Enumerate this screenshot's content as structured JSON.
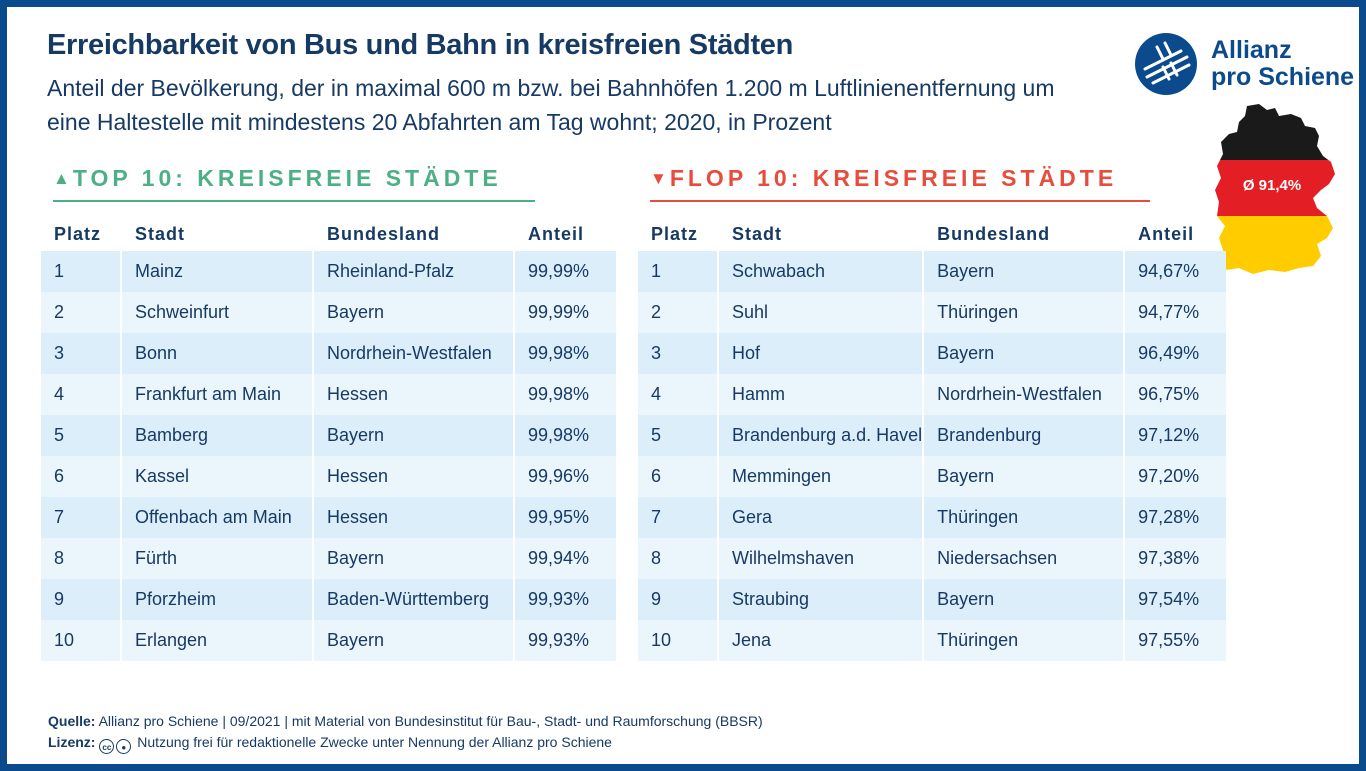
{
  "title": "Erreichbarkeit von Bus und Bahn in kreisfreien Städten",
  "subtitle": "Anteil der Bevölkerung, der in maximal 600 m bzw. bei Bahnhöfen 1.200 m Luftlinienentfernung um eine Haltestelle mit mindestens 20 Abfahrten am Tag wohnt; 2020, in Prozent",
  "logo": {
    "line1": "Allianz",
    "line2": "pro Schiene",
    "color": "#0b4a8c"
  },
  "map": {
    "average_label": "Ø 91,4%",
    "colors": [
      "#1a1a1a",
      "#e31e24",
      "#ffcc00"
    ]
  },
  "columns": {
    "rank": "Platz",
    "city": "Stadt",
    "state": "Bundesland",
    "share": "Anteil"
  },
  "top": {
    "heading": "TOP 10: KREISFREIE STÄDTE",
    "arrow": "▲",
    "color": "#4caf85",
    "rows": [
      {
        "rank": "1",
        "city": "Mainz",
        "state": "Rheinland-Pfalz",
        "share": "99,99%"
      },
      {
        "rank": "2",
        "city": "Schweinfurt",
        "state": "Bayern",
        "share": "99,99%"
      },
      {
        "rank": "3",
        "city": "Bonn",
        "state": "Nordrhein-Westfalen",
        "share": "99,98%"
      },
      {
        "rank": "4",
        "city": "Frankfurt am Main",
        "state": "Hessen",
        "share": "99,98%"
      },
      {
        "rank": "5",
        "city": "Bamberg",
        "state": "Bayern",
        "share": "99,98%"
      },
      {
        "rank": "6",
        "city": "Kassel",
        "state": "Hessen",
        "share": "99,96%"
      },
      {
        "rank": "7",
        "city": "Offenbach am Main",
        "state": "Hessen",
        "share": "99,95%"
      },
      {
        "rank": "8",
        "city": "Fürth",
        "state": "Bayern",
        "share": "99,94%"
      },
      {
        "rank": "9",
        "city": "Pforzheim",
        "state": "Baden-Württemberg",
        "share": "99,93%"
      },
      {
        "rank": "10",
        "city": "Erlangen",
        "state": "Bayern",
        "share": "99,93%"
      }
    ]
  },
  "flop": {
    "heading": "FLOP 10: KREISFREIE STÄDTE",
    "arrow": "▼",
    "color": "#e74c3c",
    "rows": [
      {
        "rank": "1",
        "city": "Schwabach",
        "state": "Bayern",
        "share": "94,67%"
      },
      {
        "rank": "2",
        "city": "Suhl",
        "state": "Thüringen",
        "share": "94,77%"
      },
      {
        "rank": "3",
        "city": "Hof",
        "state": "Bayern",
        "share": "96,49%"
      },
      {
        "rank": "4",
        "city": "Hamm",
        "state": "Nordrhein-Westfalen",
        "share": "96,75%"
      },
      {
        "rank": "5",
        "city": "Brandenburg a.d. Havel",
        "state": "Brandenburg",
        "share": "97,12%"
      },
      {
        "rank": "6",
        "city": "Memmingen",
        "state": "Bayern",
        "share": "97,20%"
      },
      {
        "rank": "7",
        "city": "Gera",
        "state": "Thüringen",
        "share": "97,28%"
      },
      {
        "rank": "8",
        "city": "Wilhelmshaven",
        "state": "Niedersachsen",
        "share": "97,38%"
      },
      {
        "rank": "9",
        "city": "Straubing",
        "state": "Bayern",
        "share": "97,54%"
      },
      {
        "rank": "10",
        "city": "Jena",
        "state": "Thüringen",
        "share": "97,55%"
      }
    ]
  },
  "footer": {
    "source_label": "Quelle:",
    "source_text": "Allianz pro Schiene | 09/2021 | mit Material von Bundesinstitut für Bau-, Stadt- und Raumforschung (BBSR)",
    "license_label": "Lizenz:",
    "license_icons": [
      "cc-icon",
      "by-icon"
    ],
    "license_text": "Nutzung frei für redaktionelle Zwecke unter Nennung der Allianz pro Schiene"
  }
}
